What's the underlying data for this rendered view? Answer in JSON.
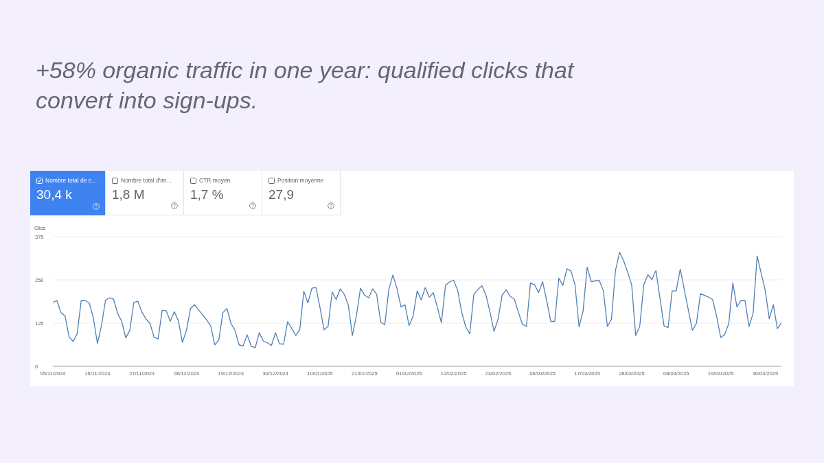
{
  "chart_data": {
    "type": "line",
    "title": "+58% organic traffic in one year: qualified clicks that convert into sign-ups.",
    "ylabel": "Clics",
    "annotations": [
      "Nombre total de c…",
      "30,4 k",
      "Nombre total d'im…",
      "1,8 M",
      "CTR moyen",
      "1,7 %",
      "Position moyenne",
      "27,9"
    ],
    "categories": [
      "05/11/2024",
      null,
      null,
      null,
      null,
      null,
      null,
      null,
      null,
      null,
      null,
      "16/11/2024",
      null,
      null,
      null,
      null,
      null,
      null,
      null,
      null,
      null,
      null,
      "27/11/2024",
      null,
      null,
      null,
      null,
      null,
      null,
      null,
      null,
      null,
      null,
      "08/12/2024",
      null,
      null,
      null,
      null,
      null,
      null,
      null,
      null,
      null,
      null,
      "19/12/2024",
      null,
      null,
      null,
      null,
      null,
      null,
      null,
      null,
      null,
      null,
      "30/12/2024",
      null,
      null,
      null,
      null,
      null,
      null,
      null,
      null,
      null,
      null,
      "10/01/2025",
      null,
      null,
      null,
      null,
      null,
      null,
      null,
      null,
      null,
      null,
      "21/01/2025",
      null,
      null,
      null,
      null,
      null,
      null,
      null,
      null,
      null,
      null,
      "01/02/2025",
      null,
      null,
      null,
      null,
      null,
      null,
      null,
      null,
      null,
      null,
      "12/02/2025",
      null,
      null,
      null,
      null,
      null,
      null,
      null,
      null,
      null,
      null,
      "23/02/2025",
      null,
      null,
      null,
      null,
      null,
      null,
      null,
      null,
      null,
      null,
      "06/03/2025",
      null,
      null,
      null,
      null,
      null,
      null,
      null,
      null,
      null,
      null,
      "17/03/2025",
      null,
      null,
      null,
      null,
      null,
      null,
      null,
      null,
      null,
      null,
      "28/03/2025",
      null,
      null,
      null,
      null,
      null,
      null,
      null,
      null,
      null,
      null,
      "08/04/2025",
      null,
      null,
      null,
      null,
      null,
      null,
      null,
      null,
      null,
      null,
      "19/04/2025",
      null,
      null,
      null,
      null,
      null,
      null,
      null,
      null,
      null,
      null,
      "30/04/2025",
      null,
      null,
      null,
      null
    ],
    "series": [
      {
        "color": "#4f7fb5",
        "values": [
          185,
          190,
          155,
          146,
          85,
          72,
          94,
          190,
          190,
          183,
          140,
          66,
          117,
          191,
          198,
          194,
          153,
          130,
          82,
          104,
          185,
          188,
          157,
          137,
          124,
          84,
          79,
          162,
          161,
          130,
          158,
          132,
          69,
          104,
          167,
          178,
          163,
          149,
          134,
          117,
          62,
          76,
          155,
          167,
          124,
          104,
          62,
          59,
          91,
          58,
          54,
          97,
          73,
          68,
          60,
          97,
          65,
          64,
          129,
          110,
          89,
          106,
          217,
          183,
          226,
          228,
          170,
          105,
          116,
          215,
          193,
          224,
          208,
          177,
          89,
          147,
          226,
          206,
          198,
          224,
          208,
          128,
          120,
          222,
          264,
          226,
          172,
          178,
          118,
          145,
          218,
          192,
          228,
          200,
          213,
          170,
          126,
          234,
          244,
          249,
          220,
          157,
          114,
          94,
          208,
          222,
          233,
          206,
          157,
          101,
          137,
          206,
          221,
          202,
          195,
          157,
          122,
          115,
          241,
          236,
          213,
          245,
          190,
          130,
          130,
          255,
          234,
          282,
          276,
          236,
          114,
          160,
          287,
          245,
          247,
          248,
          219,
          115,
          136,
          277,
          330,
          306,
          272,
          236,
          89,
          116,
          236,
          265,
          251,
          277,
          196,
          117,
          112,
          218,
          218,
          281,
          222,
          163,
          104,
          124,
          210,
          205,
          200,
          193,
          144,
          83,
          92,
          124,
          241,
          172,
          190,
          190,
          115,
          153,
          319,
          269,
          220,
          137,
          178,
          109,
          126
        ]
      }
    ],
    "ylim": [
      0,
      375
    ],
    "yticks": [
      0,
      125,
      250,
      375
    ],
    "grid": "y",
    "legend": false,
    "marker": "none",
    "line_style": "solid"
  }
}
